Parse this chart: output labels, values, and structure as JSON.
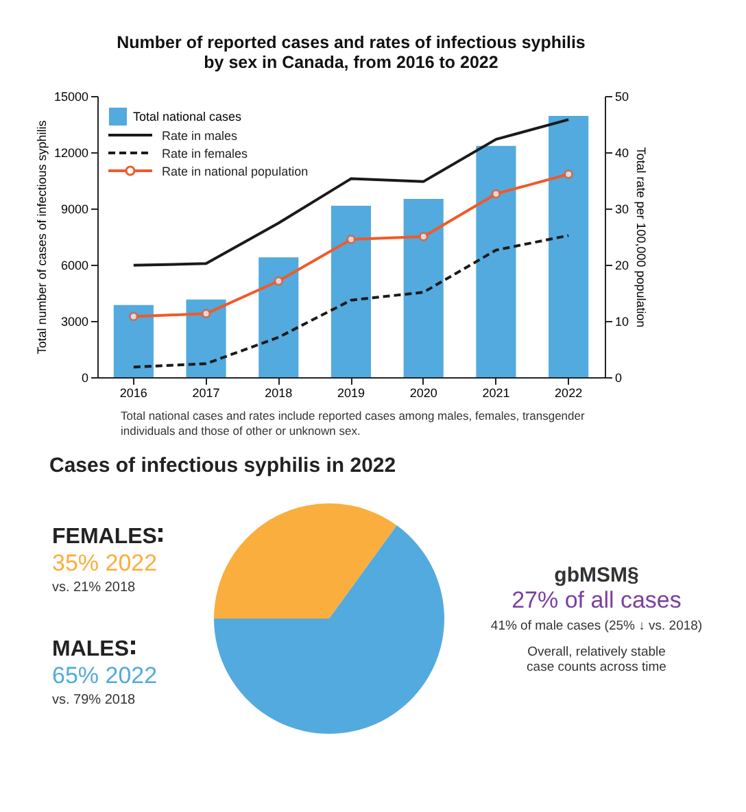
{
  "chart_data": [
    {
      "type": "bar",
      "title": "Number of reported cases and rates of infectious syphilis\nby sex in Canada, from 2016 to 2022",
      "ylabel": "Total number of cases of infectious syphilis",
      "y2label": "Total rate per 100,000 population",
      "categories": [
        "2016",
        "2017",
        "2018",
        "2019",
        "2020",
        "2021",
        "2022"
      ],
      "series": [
        {
          "name": "Total national cases",
          "color": "#52aadf",
          "values": [
            3850,
            4140,
            6390,
            9150,
            9510,
            12340,
            13940
          ]
        },
        {
          "type": "line",
          "axis": "y2",
          "name": "Rate in males",
          "color": "#1a1a1a",
          "line_style": "solid",
          "values": [
            19.9,
            20.2,
            27.4,
            35.3,
            34.8,
            42.3,
            45.8
          ]
        },
        {
          "type": "line",
          "axis": "y2",
          "name": "Rate in females",
          "color": "#1a1a1a",
          "line_style": "dashed",
          "values": [
            1.8,
            2.4,
            7.1,
            13.7,
            15.1,
            22.6,
            25.2
          ]
        },
        {
          "type": "line",
          "axis": "y2",
          "name": "Rate in national population",
          "color": "#f05a28",
          "line_style": "solid",
          "marker": "circle",
          "values": [
            10.8,
            11.3,
            17.1,
            24.5,
            25.0,
            32.6,
            36.1
          ]
        }
      ],
      "ylim": [
        0,
        15000
      ],
      "yticks": [
        0,
        3000,
        6000,
        9000,
        12000,
        15000
      ],
      "y2lim": [
        0,
        50
      ],
      "y2ticks": [
        0,
        10,
        20,
        30,
        40,
        50
      ],
      "grid": false,
      "legend": "top left",
      "annotations": [
        "Total national cases and rates include reported cases among males, females, transgender individuals and those of other or unknown sex."
      ]
    },
    {
      "type": "pie",
      "title": "Cases of infectious syphilis in 2022",
      "categories": [
        "FEMALES",
        "MALES"
      ],
      "values": [
        35,
        65
      ],
      "colors": [
        "#f9ae3d",
        "#52aadf"
      ],
      "value_labels": [
        "35% 2022",
        "65% 2022"
      ],
      "legend": false,
      "annotations": [
        "vs. 21% 2018",
        "vs. 79% 2018",
        "gbMSM§",
        "27% of all cases",
        "41% of male cases (25% ↓ vs. 2018)",
        "Overall, relatively stable case counts across time"
      ]
    }
  ]
}
